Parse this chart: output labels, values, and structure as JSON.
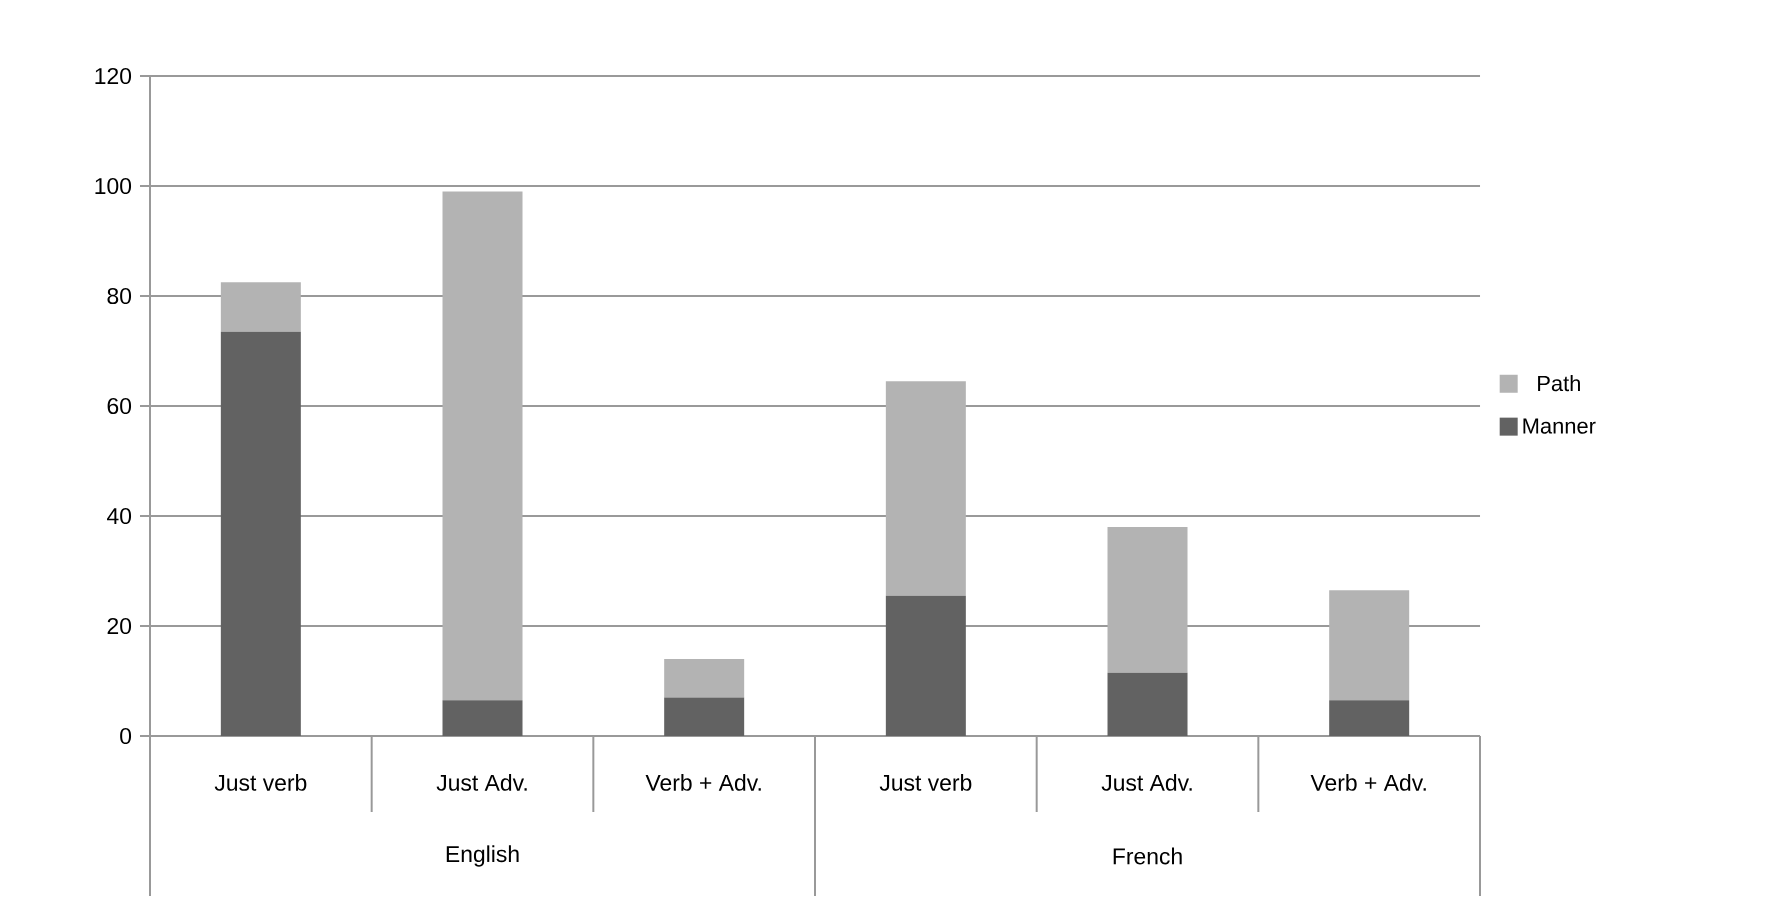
{
  "chart_data": {
    "type": "bar",
    "stacked": true,
    "categories": [
      "Just verb",
      "Just Adv.",
      "Verb + Adv.",
      "Just verb",
      "Just Adv.",
      "Verb + Adv."
    ],
    "series": [
      {
        "name": "Manner",
        "color": "#626262",
        "values": [
          73.5,
          6.5,
          7,
          25.5,
          11.5,
          6.5
        ]
      },
      {
        "name": "Path",
        "color": "#b3b3b3",
        "values": [
          9,
          92.5,
          7,
          39,
          26.5,
          20
        ]
      }
    ],
    "annotations": [
      "English",
      "French"
    ],
    "ylim": [
      0,
      120
    ],
    "yticks": [
      0,
      20,
      40,
      60,
      80,
      100,
      120
    ],
    "grid": "y",
    "legend": "right"
  }
}
